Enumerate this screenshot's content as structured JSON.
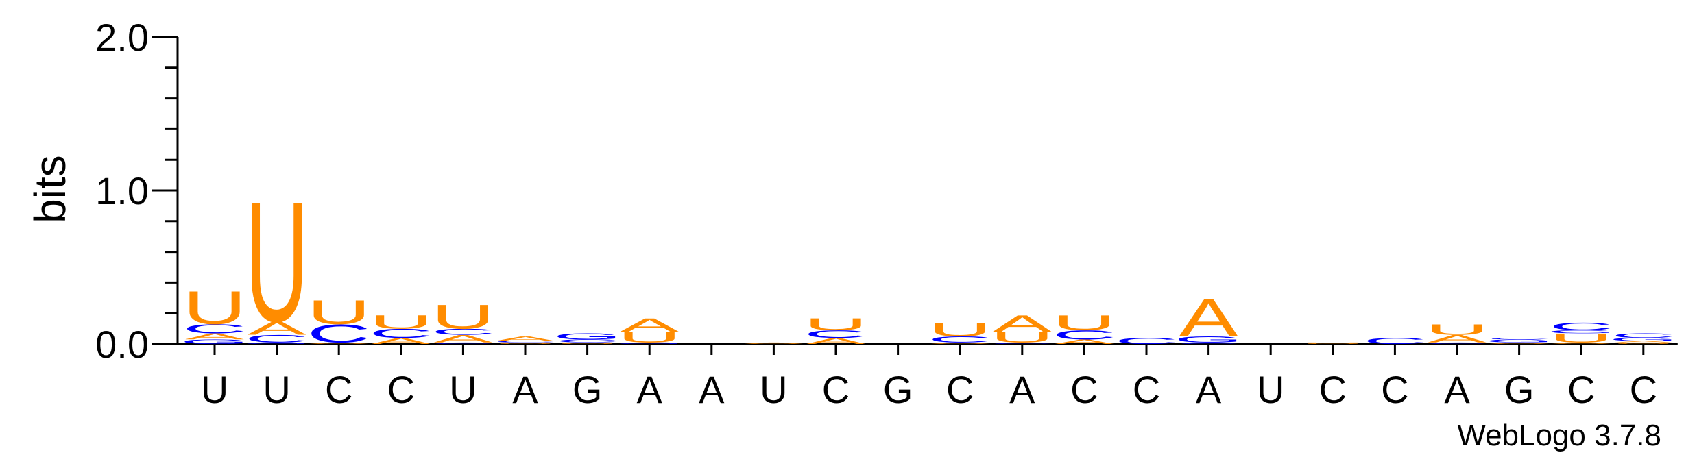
{
  "colors": {
    "A": "#ff8c00",
    "U": "#ff8c00",
    "C": "#0000ff",
    "G": "#0000ff",
    "axis": "#000000"
  },
  "chart_data": {
    "type": "sequence-logo",
    "ylabel": "bits",
    "ylim": [
      0,
      2.0
    ],
    "yticks": [
      "0.0",
      "1.0",
      "2.0"
    ],
    "yminor_step": 0.2,
    "x_labels": [
      "U",
      "U",
      "C",
      "C",
      "U",
      "A",
      "G",
      "A",
      "A",
      "U",
      "C",
      "G",
      "C",
      "A",
      "C",
      "C",
      "A",
      "U",
      "C",
      "C",
      "A",
      "G",
      "C",
      "C"
    ],
    "credit": "WebLogo 3.7.8",
    "stacks": [
      [
        {
          "l": "G",
          "h": 0.03
        },
        {
          "l": "A",
          "h": 0.04
        },
        {
          "l": "C",
          "h": 0.06
        },
        {
          "l": "U",
          "h": 0.22
        }
      ],
      [
        {
          "l": "G",
          "h": 0.01
        },
        {
          "l": "C",
          "h": 0.05
        },
        {
          "l": "A",
          "h": 0.09
        },
        {
          "l": "U",
          "h": 0.8
        }
      ],
      [
        {
          "l": "A",
          "h": 0.01
        },
        {
          "l": "C",
          "h": 0.12
        },
        {
          "l": "U",
          "h": 0.16
        }
      ],
      [
        {
          "l": "A",
          "h": 0.04
        },
        {
          "l": "C",
          "h": 0.06
        },
        {
          "l": "U",
          "h": 0.09
        }
      ],
      [
        {
          "l": "C",
          "h": 0.01
        },
        {
          "l": "A",
          "h": 0.05
        },
        {
          "l": "C",
          "h": 0.04
        },
        {
          "l": "U",
          "h": 0.16
        }
      ],
      [
        {
          "l": "U",
          "h": 0.01
        },
        {
          "l": "C",
          "h": 0.01
        },
        {
          "l": "A",
          "h": 0.03
        }
      ],
      [
        {
          "l": "U",
          "h": 0.01
        },
        {
          "l": "C",
          "h": 0.02
        },
        {
          "l": "G",
          "h": 0.04
        }
      ],
      [
        {
          "l": "G",
          "h": 0.01
        },
        {
          "l": "U",
          "h": 0.07
        },
        {
          "l": "A",
          "h": 0.09
        }
      ],
      [],
      [
        {
          "l": "A",
          "h": 0.01
        }
      ],
      [
        {
          "l": "A",
          "h": 0.04
        },
        {
          "l": "C",
          "h": 0.05
        },
        {
          "l": "U",
          "h": 0.08
        }
      ],
      [],
      [
        {
          "l": "A",
          "h": 0.01
        },
        {
          "l": "C",
          "h": 0.04
        },
        {
          "l": "U",
          "h": 0.09
        }
      ],
      [
        {
          "l": "C",
          "h": 0.01
        },
        {
          "l": "U",
          "h": 0.07
        },
        {
          "l": "A",
          "h": 0.11
        }
      ],
      [
        {
          "l": "A",
          "h": 0.03
        },
        {
          "l": "C",
          "h": 0.06
        },
        {
          "l": "U",
          "h": 0.1
        }
      ],
      [
        {
          "l": "C",
          "h": 0.04
        }
      ],
      [
        {
          "l": "C",
          "h": 0.01
        },
        {
          "l": "G",
          "h": 0.04
        },
        {
          "l": "A",
          "h": 0.25
        }
      ],
      [],
      [
        {
          "l": "U",
          "h": 0.01
        }
      ],
      [
        {
          "l": "C",
          "h": 0.04
        }
      ],
      [
        {
          "l": "C",
          "h": 0.01
        },
        {
          "l": "A",
          "h": 0.05
        },
        {
          "l": "U",
          "h": 0.07
        }
      ],
      [
        {
          "l": "A",
          "h": 0.01
        },
        {
          "l": "G",
          "h": 0.02
        },
        {
          "l": "C",
          "h": 0.01
        }
      ],
      [
        {
          "l": "A",
          "h": 0.01
        },
        {
          "l": "U",
          "h": 0.06
        },
        {
          "l": "G",
          "h": 0.02
        },
        {
          "l": "C",
          "h": 0.05
        }
      ],
      [
        {
          "l": "U",
          "h": 0.01
        },
        {
          "l": "A",
          "h": 0.01
        },
        {
          "l": "G",
          "h": 0.02
        },
        {
          "l": "C",
          "h": 0.03
        }
      ]
    ]
  }
}
